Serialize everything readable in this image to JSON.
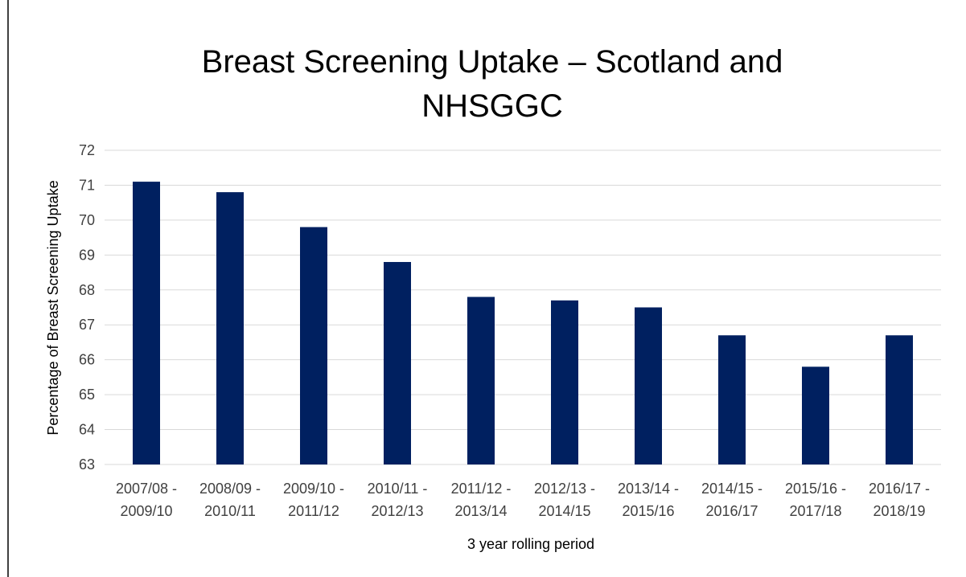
{
  "chart_data": {
    "type": "bar",
    "title": "Breast Screening Uptake – Scotland and NHSGGC",
    "x_label": "3 year rolling period",
    "y_label": "Percentage of Breast Screening Uptake",
    "categories": [
      "2007/08 - 2009/10",
      "2008/09 - 2010/11",
      "2009/10 - 2011/12",
      "2010/11 - 2012/13",
      "2011/12 - 2013/14",
      "2012/13 - 2014/15",
      "2013/14 - 2015/16",
      "2014/15 - 2016/17",
      "2015/16 - 2017/18",
      "2016/17 - 2018/19"
    ],
    "values": [
      71.1,
      70.8,
      69.8,
      68.8,
      67.8,
      67.7,
      67.5,
      66.7,
      65.8,
      66.7
    ],
    "color": "#002060",
    "ylim": [
      63,
      72
    ],
    "yticks": [
      63,
      64,
      65,
      66,
      67,
      68,
      69,
      70,
      71,
      72
    ],
    "grid": true
  }
}
